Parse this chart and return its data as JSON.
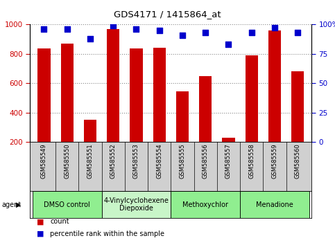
{
  "title": "GDS4171 / 1415864_at",
  "samples": [
    "GSM585549",
    "GSM585550",
    "GSM585551",
    "GSM585552",
    "GSM585553",
    "GSM585554",
    "GSM585555",
    "GSM585556",
    "GSM585557",
    "GSM585558",
    "GSM585559",
    "GSM585560"
  ],
  "counts": [
    835,
    870,
    352,
    970,
    838,
    843,
    547,
    647,
    232,
    790,
    960,
    682
  ],
  "percentiles": [
    96,
    96,
    88,
    99,
    96,
    95,
    91,
    93,
    83,
    93,
    97,
    93
  ],
  "bar_color": "#cc0000",
  "dot_color": "#0000cc",
  "ylim_left": [
    200,
    1000
  ],
  "ylim_right": [
    0,
    100
  ],
  "yticks_left": [
    200,
    400,
    600,
    800,
    1000
  ],
  "yticks_right": [
    0,
    25,
    50,
    75,
    100
  ],
  "agents": [
    {
      "label": "DMSO control",
      "start": 0,
      "end": 2,
      "color": "#90ee90"
    },
    {
      "label": "4-Vinylcyclohexene\nDiepoxide",
      "start": 3,
      "end": 5,
      "color": "#c8f5c8"
    },
    {
      "label": "Methoxychlor",
      "start": 6,
      "end": 8,
      "color": "#90ee90"
    },
    {
      "label": "Menadione",
      "start": 9,
      "end": 11,
      "color": "#90ee90"
    }
  ],
  "tick_area_color": "#d0d0d0",
  "agent_area_color": "#90ee90",
  "legend_count_color": "#cc0000",
  "legend_pct_color": "#0000cc",
  "grid_color": "#888888",
  "background_color": "#ffffff"
}
